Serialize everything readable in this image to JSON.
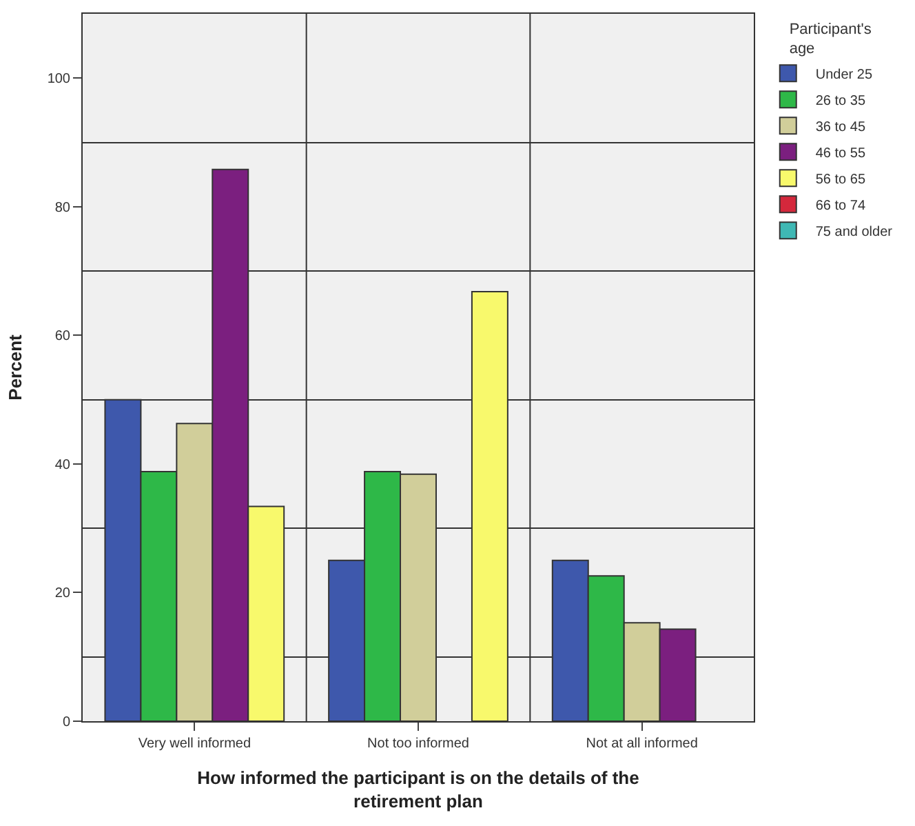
{
  "chart_data": {
    "type": "bar",
    "xlabel": "How informed the participant is on the details of the retirement plan",
    "ylabel": "Percent",
    "legend_title": "Participant's age",
    "categories": [
      "Very well informed",
      "Not too informed",
      "Not at all informed"
    ],
    "series": [
      {
        "name": "Under 25",
        "color": "#3e58ac",
        "values": [
          50,
          25,
          25
        ]
      },
      {
        "name": "26 to 35",
        "color": "#2eb848",
        "values": [
          38.8,
          38.8,
          22.6
        ]
      },
      {
        "name": "36 to 45",
        "color": "#d1ce9a",
        "values": [
          46.3,
          38.4,
          15.3
        ]
      },
      {
        "name": "46 to 55",
        "color": "#7b1f7f",
        "values": [
          85.8,
          null,
          14.3
        ]
      },
      {
        "name": "56 to 65",
        "color": "#f8f96c",
        "values": [
          33.4,
          66.8,
          null
        ]
      },
      {
        "name": "66 to 74",
        "color": "#d4283c",
        "values": [
          null,
          null,
          null
        ]
      },
      {
        "name": "75 and older",
        "color": "#3fb8b4",
        "values": [
          null,
          null,
          null
        ]
      }
    ],
    "ylim": [
      0,
      110
    ],
    "yticks": [
      0,
      {
        "value": 10,
        "label": null
      },
      20,
      {
        "value": 30,
        "label": null
      },
      40,
      {
        "value": 50,
        "label": null
      },
      60,
      {
        "value": 70,
        "label": null
      },
      80,
      {
        "value": 90,
        "label": null
      },
      100
    ],
    "grid": true,
    "legend": "top right"
  }
}
